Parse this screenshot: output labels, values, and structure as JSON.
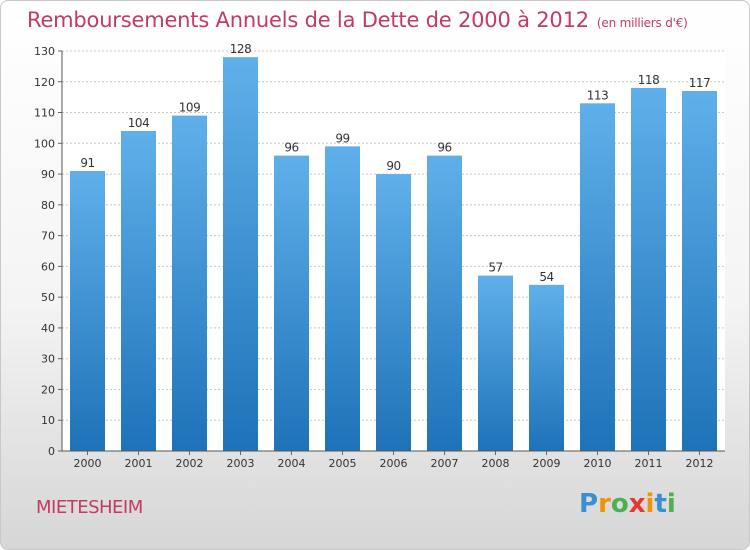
{
  "chart_title": "Remboursements Annuels de la Dette de 2000 à 2012",
  "chart_unit": "(en milliers d'€)",
  "place_name": "MIETESHEIM",
  "logo": {
    "letters": [
      "P",
      "r",
      "o",
      "x",
      "i",
      "t",
      "i"
    ],
    "colors": [
      "#3a8fd0",
      "#f29400",
      "#4caf50",
      "#e53935",
      "#f29400",
      "#3a8fd0",
      "#4caf50"
    ]
  },
  "colors": {
    "bar_top": "#5fb0ea",
    "bar_bottom": "#1e72b8",
    "title": "#c33a62"
  },
  "chart_data": {
    "type": "bar",
    "title": "Remboursements Annuels de la Dette de 2000 à 2012",
    "xlabel": "",
    "ylabel": "",
    "categories": [
      "2000",
      "2001",
      "2002",
      "2003",
      "2004",
      "2005",
      "2006",
      "2007",
      "2008",
      "2009",
      "2010",
      "2011",
      "2012"
    ],
    "values": [
      91,
      104,
      109,
      128,
      96,
      99,
      90,
      96,
      57,
      54,
      113,
      118,
      117
    ],
    "ylim": [
      0,
      130
    ],
    "yticks": [
      0,
      10,
      20,
      30,
      40,
      50,
      60,
      70,
      80,
      90,
      100,
      110,
      120,
      130
    ],
    "grid": true
  }
}
